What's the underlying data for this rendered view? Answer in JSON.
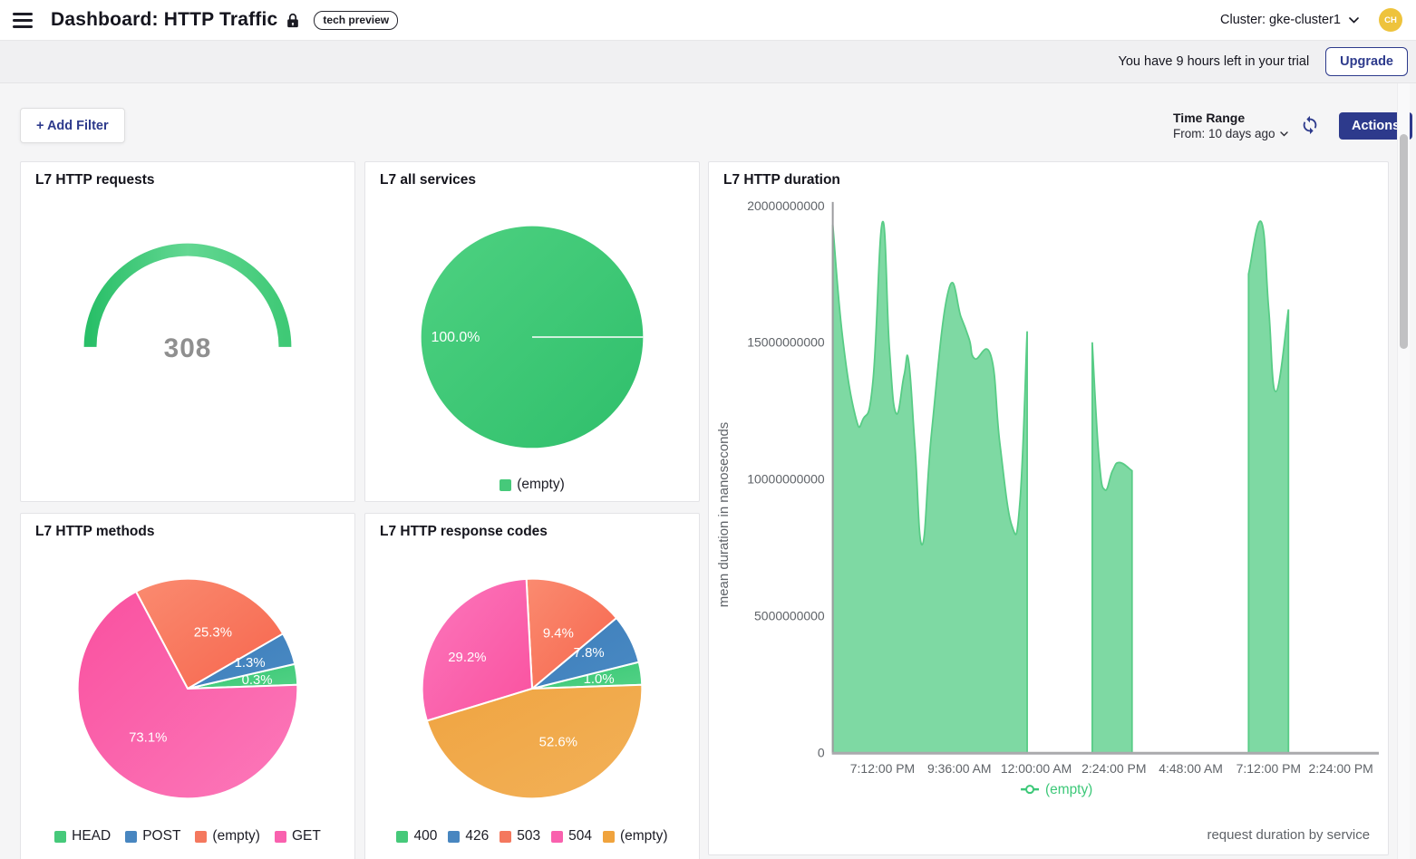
{
  "header": {
    "title": "Dashboard: HTTP Traffic",
    "badge": "tech preview",
    "cluster": "Cluster: gke-cluster1",
    "avatar_initials": "CH"
  },
  "trial": {
    "message": "You have 9 hours left in your trial",
    "upgrade_label": "Upgrade"
  },
  "toolbar": {
    "add_filter_label": "+ Add Filter",
    "time_range_label": "Time Range",
    "time_range_value": "From: 10 days ago",
    "actions_label": "Actions"
  },
  "colors": {
    "accent_navy": "#2d3a8c",
    "area_green": "#7ed9a3",
    "legend_green": "#46c97a",
    "legend_blue": "#4886c0",
    "legend_salmon": "#f4785e",
    "legend_pink": "#f961ae",
    "legend_orange": "#f0a33d"
  },
  "chart_data": [
    {
      "type": "gauge",
      "title": "L7 HTTP requests",
      "value": 308,
      "color_stops": [
        "#29bf68",
        "#63d792",
        "#3fc976"
      ],
      "value_color": "#8f8f8f"
    },
    {
      "type": "pie",
      "title": "L7 all services",
      "slices": [
        {
          "label": "(empty)",
          "pct": 100.0,
          "colors": [
            "#4ed181",
            "#2fbf6b"
          ],
          "legend_color": "#46c97a",
          "start": 2,
          "end": 362,
          "label_offset": [
            -85,
            0
          ]
        }
      ]
    },
    {
      "type": "area",
      "title": "L7 HTTP duration",
      "ylabel": "mean duration in nanoseconds",
      "caption": "request duration by service",
      "legend": "(empty)",
      "legend_color": "#3cc878",
      "line_color": "#58cc86",
      "fill_color": "#7ed9a3",
      "ylim": [
        0,
        20000000000
      ],
      "yticks": [
        "0",
        "5000000000",
        "10000000000",
        "15000000000",
        "20000000000"
      ],
      "xticks": [
        "7:12:00 PM",
        "9:36:00 AM",
        "12:00:00 AM",
        "2:24:00 PM",
        "4:48:00 AM",
        "7:12:00 PM",
        "2:24:00 PM"
      ],
      "xtick_x": [
        192,
        277,
        362,
        448,
        533,
        619,
        699
      ],
      "grid": false,
      "segments": [
        [
          [
            0.0,
            19300000000
          ],
          [
            0.018,
            15200000000
          ],
          [
            0.0415,
            12300000000
          ],
          [
            0.056,
            12200000000
          ],
          [
            0.074,
            13600000000
          ],
          [
            0.0913,
            19400000000
          ],
          [
            0.104,
            14800000000
          ],
          [
            0.1163,
            12400000000
          ],
          [
            0.131,
            13800000000
          ],
          [
            0.1395,
            14300000000
          ],
          [
            0.151,
            11200000000
          ],
          [
            0.1645,
            7600000000
          ],
          [
            0.182,
            11800000000
          ],
          [
            0.2126,
            16900000000
          ],
          [
            0.236,
            15900000000
          ],
          [
            0.2508,
            15100000000
          ],
          [
            0.2608,
            14400000000
          ],
          [
            0.2907,
            14500000000
          ],
          [
            0.307,
            11300000000
          ],
          [
            0.3289,
            8300000000
          ],
          [
            0.344,
            9200000000
          ],
          [
            0.3571,
            15400000000
          ]
        ],
        [
          [
            0.4767,
            15000000000
          ],
          [
            0.489,
            10800000000
          ],
          [
            0.5,
            9600000000
          ],
          [
            0.514,
            10300000000
          ],
          [
            0.5266,
            10600000000
          ],
          [
            0.5498,
            10300000000
          ]
        ],
        [
          [
            0.764,
            17500000000
          ],
          [
            0.7873,
            19400000000
          ],
          [
            0.801,
            16200000000
          ],
          [
            0.814,
            13200000000
          ],
          [
            0.8372,
            16200000000
          ]
        ]
      ]
    },
    {
      "type": "pie",
      "title": "L7 HTTP methods",
      "slices": [
        {
          "label": "HEAD",
          "pct": 0.3,
          "colors": [
            "#35c672",
            "#53d286"
          ],
          "legend_color": "#46c97a",
          "start": 2,
          "end": 13,
          "label_offset": [
            77,
            -10
          ]
        },
        {
          "label": "POST",
          "pct": 1.3,
          "colors": [
            "#3d7eba",
            "#4a8ac4"
          ],
          "legend_color": "#4886c0",
          "start": 13,
          "end": 30,
          "label_offset": [
            69,
            -29
          ]
        },
        {
          "label": "(empty)",
          "pct": 25.3,
          "colors": [
            "#fa8b70",
            "#f7654d"
          ],
          "legend_color": "#f4785e",
          "start": 30,
          "end": 118,
          "label_offset": [
            28,
            -63
          ]
        },
        {
          "label": "GET",
          "pct": 73.1,
          "colors": [
            "#f9509f",
            "#fc79ba"
          ],
          "legend_color": "#f961ae",
          "start": 118,
          "end": 362,
          "label_offset": [
            -44,
            54
          ]
        }
      ]
    },
    {
      "type": "pie",
      "title": "L7 HTTP response codes",
      "slices": [
        {
          "label": "400",
          "pct": 1.0,
          "colors": [
            "#35c672",
            "#53d286"
          ],
          "legend_color": "#46c97a",
          "start": 2,
          "end": 14,
          "label_offset": [
            74,
            -11
          ]
        },
        {
          "label": "426",
          "pct": 7.8,
          "colors": [
            "#3d7eba",
            "#4a8ac4"
          ],
          "legend_color": "#4886c0",
          "start": 14,
          "end": 40,
          "label_offset": [
            63,
            -40
          ]
        },
        {
          "label": "503",
          "pct": 9.4,
          "colors": [
            "#fa8b70",
            "#f7654d"
          ],
          "legend_color": "#f4785e",
          "start": 40,
          "end": 93,
          "label_offset": [
            29,
            -62
          ]
        },
        {
          "label": "504",
          "pct": 29.2,
          "colors": [
            "#fc77bc",
            "#f9519f"
          ],
          "legend_color": "#f961ae",
          "start": 93,
          "end": 197,
          "label_offset": [
            -72,
            -35
          ]
        },
        {
          "label": "(empty)",
          "pct": 52.6,
          "colors": [
            "#f0a441",
            "#f2b158"
          ],
          "legend_color": "#f0a33d",
          "start": 197,
          "end": 362,
          "label_offset": [
            29,
            59
          ]
        }
      ]
    }
  ]
}
